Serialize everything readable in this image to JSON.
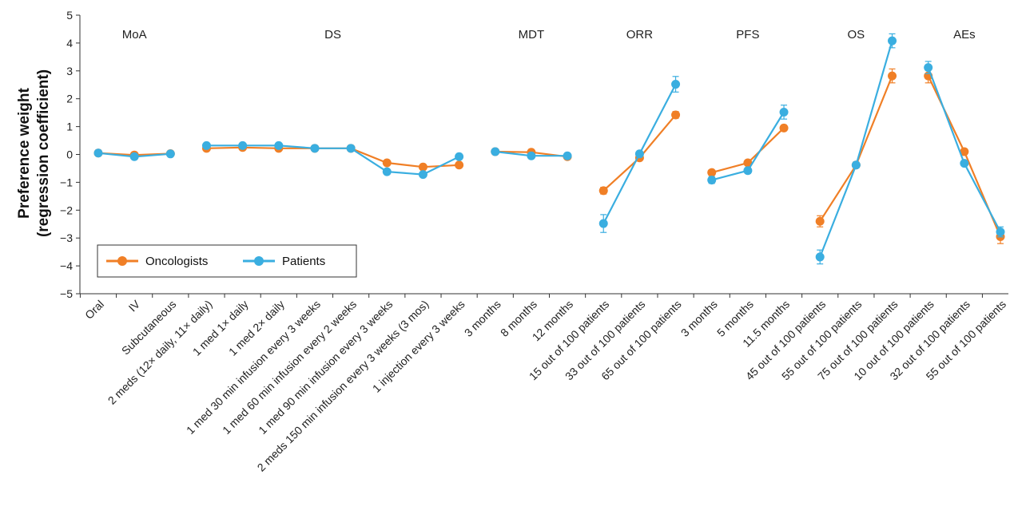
{
  "chart_data": {
    "type": "line",
    "ylabel": [
      "Preference weight",
      "(regression coefficient)"
    ],
    "ylim": [
      -5,
      5
    ],
    "yticks": [
      {
        "value": 5,
        "label": "5"
      },
      {
        "value": 4,
        "label": "4"
      },
      {
        "value": 3,
        "label": "3"
      },
      {
        "value": 2,
        "label": "2"
      },
      {
        "value": 1,
        "label": "1"
      },
      {
        "value": 0,
        "label": "0"
      },
      {
        "value": -1,
        "label": "−1"
      },
      {
        "value": -2,
        "label": "−2"
      },
      {
        "value": -3,
        "label": "−3"
      },
      {
        "value": -4,
        "label": "−4"
      },
      {
        "value": -5,
        "label": "−5"
      }
    ],
    "categories": [
      "Oral",
      "IV",
      "Subcutaneous",
      "2 meds (12× daily, 11× daily)",
      "1 med 1× daily",
      "1 med 2× daily",
      "1 med 30 min infusion every 3 weeks",
      "1 med 60 min infusion every 2 weeks",
      "1 med 90 min infusion every 3 weeks",
      "2 meds 150 min infusion every 3 weeks (3 mos)",
      "1 injection every 3 weeks",
      "3 months",
      "8 months",
      "12 months",
      "15 out of 100 patients",
      "33 out of 100 patients",
      "65 out of 100 patients",
      "3 months",
      "5 months",
      "11.5 months",
      "45 out of 100 patients",
      "55 out of 100 patients",
      "75 out of 100 patients",
      "10 out of 100 patients",
      "32 out of 100 patients",
      "55 out of 100 patients"
    ],
    "groups": [
      {
        "label": "MoA",
        "start": 0,
        "end": 2
      },
      {
        "label": "DS",
        "start": 3,
        "end": 10
      },
      {
        "label": "MDT",
        "start": 11,
        "end": 13
      },
      {
        "label": "ORR",
        "start": 14,
        "end": 16
      },
      {
        "label": "PFS",
        "start": 17,
        "end": 19
      },
      {
        "label": "OS",
        "start": 20,
        "end": 22
      },
      {
        "label": "AEs",
        "start": 23,
        "end": 25
      }
    ],
    "series": [
      {
        "name": "Oncologists",
        "color": "#F07F26",
        "values": [
          0.05,
          -0.02,
          0.03,
          0.22,
          0.25,
          0.22,
          0.22,
          0.22,
          -0.3,
          -0.45,
          -0.38,
          0.1,
          0.08,
          -0.08,
          -1.3,
          -0.12,
          1.42,
          -0.65,
          -0.3,
          0.95,
          -2.4,
          -0.38,
          2.82,
          2.82,
          0.1,
          -2.95
        ],
        "errors": [
          0.05,
          0.04,
          0.04,
          0.05,
          0.05,
          0.05,
          0.05,
          0.05,
          0.06,
          0.06,
          0.06,
          0.05,
          0.05,
          0.05,
          0.12,
          0.08,
          0.12,
          0.08,
          0.08,
          0.1,
          0.2,
          0.1,
          0.25,
          0.25,
          0.1,
          0.25
        ]
      },
      {
        "name": "Patients",
        "color": "#3AAEE0",
        "values": [
          0.05,
          -0.08,
          0.02,
          0.32,
          0.32,
          0.32,
          0.22,
          0.22,
          -0.62,
          -0.72,
          -0.08,
          0.1,
          -0.05,
          -0.05,
          -2.48,
          0.02,
          2.52,
          -0.92,
          -0.58,
          1.52,
          -3.68,
          -0.38,
          4.08,
          3.12,
          -0.32,
          -2.78
        ]
      }
    ],
    "patients_errors": [
      0.05,
      0.04,
      0.04,
      0.05,
      0.05,
      0.05,
      0.05,
      0.05,
      0.06,
      0.06,
      0.06,
      0.05,
      0.05,
      0.05,
      0.32,
      0.08,
      0.28,
      0.12,
      0.1,
      0.25,
      0.25,
      0.1,
      0.25,
      0.22,
      0.08,
      0.18
    ],
    "legend": {
      "position": "bottom-left",
      "items": [
        "Oncologists",
        "Patients"
      ]
    },
    "grid": false
  }
}
